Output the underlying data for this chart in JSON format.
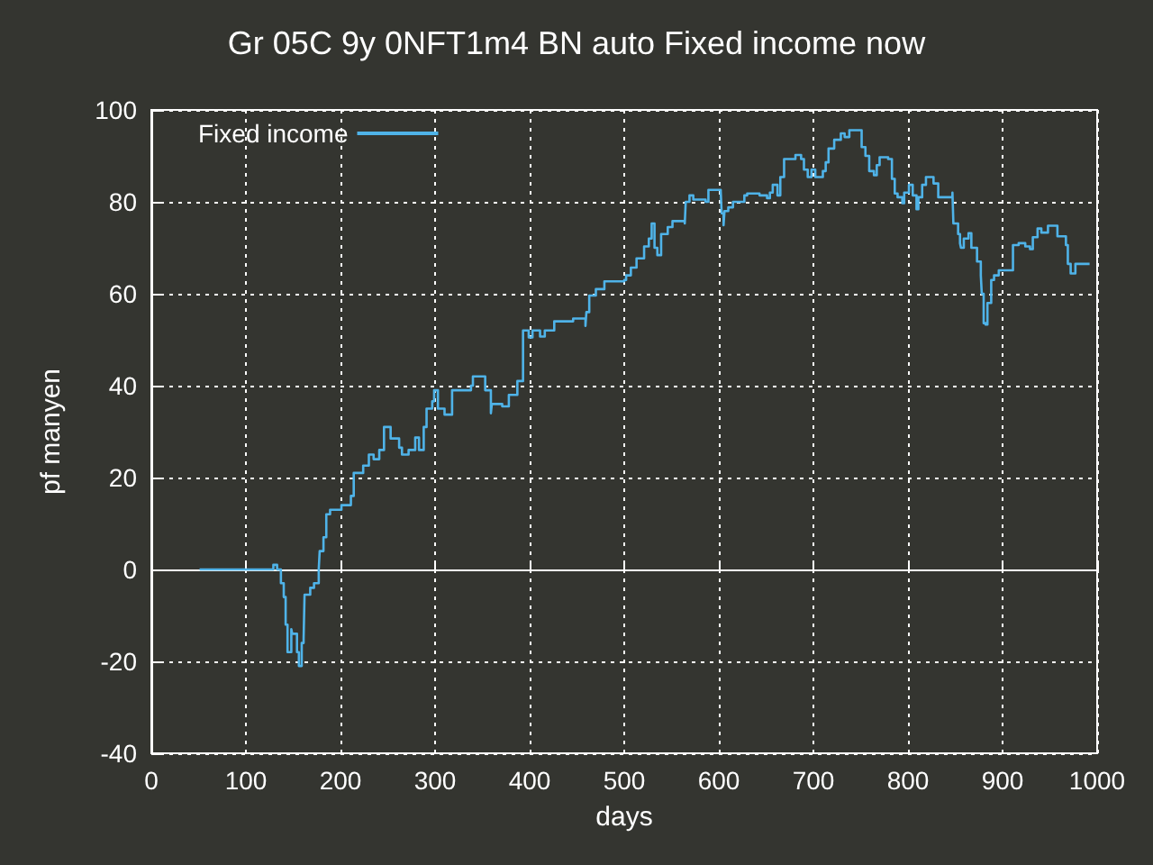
{
  "chart_data": {
    "type": "step",
    "title": "Gr 05C 9y 0NFT1m4 BN auto Fixed income now",
    "xlabel": "days",
    "ylabel": "pf manyen",
    "x": [
      51,
      129,
      133,
      137,
      140,
      142,
      144,
      148,
      149,
      154,
      156,
      159,
      161,
      162,
      168,
      172,
      177,
      178,
      182,
      185,
      189,
      201,
      211,
      214,
      224,
      230,
      235,
      241,
      246,
      253,
      262,
      265,
      272,
      279,
      283,
      288,
      291,
      297,
      299,
      303,
      310,
      318,
      338,
      340,
      353,
      359,
      360,
      371,
      378,
      387,
      393,
      399,
      403,
      411,
      416,
      426,
      446,
      459,
      460,
      463,
      470,
      479,
      500,
      502,
      507,
      513,
      521,
      526,
      529,
      532,
      535,
      539,
      546,
      551,
      564,
      565,
      569,
      573,
      586,
      589,
      602,
      603,
      605,
      606,
      610,
      615,
      627,
      630,
      643,
      651,
      654,
      657,
      662,
      665,
      669,
      681,
      687,
      690,
      694,
      698,
      702,
      710,
      713,
      716,
      722,
      729,
      733,
      738,
      749,
      751,
      755,
      759,
      764,
      767,
      770,
      779,
      783,
      786,
      789,
      794,
      796,
      801,
      805,
      809,
      811,
      815,
      819,
      827,
      832,
      847,
      848,
      853,
      855,
      856,
      859,
      864,
      867,
      873,
      877,
      878,
      880,
      882,
      884,
      888,
      891,
      896,
      909,
      911,
      917,
      924,
      929,
      932,
      937,
      941,
      948,
      956,
      958,
      967,
      969,
      972,
      977,
      992
    ],
    "series": [
      {
        "name": "Fixed income",
        "color": "#4fb3e8",
        "values": [
          0,
          1,
          0,
          -3,
          -6,
          -12,
          -18,
          -13,
          -14,
          -18,
          -21,
          -16,
          -15,
          -5.5,
          -4,
          -3,
          0,
          4,
          7,
          12,
          13,
          14,
          16,
          21,
          22.6,
          25,
          24,
          26,
          31,
          28.5,
          26.5,
          25,
          26,
          28.7,
          26,
          31,
          35,
          36.6,
          39,
          35,
          33.7,
          39,
          40,
          42,
          39,
          34,
          36,
          35.5,
          38,
          41,
          52,
          50.5,
          52,
          50.7,
          52,
          54,
          54.6,
          53,
          56,
          59.6,
          61,
          62.7,
          63,
          64,
          65.7,
          67.7,
          70.3,
          72,
          75.3,
          70,
          68.4,
          73,
          74.5,
          75.8,
          75.3,
          80,
          81.4,
          80.5,
          80,
          82.6,
          82.3,
          77.5,
          74.9,
          78,
          78.8,
          80,
          81.4,
          81.8,
          81.4,
          80.8,
          82,
          83.7,
          81.4,
          85.4,
          89.3,
          90.2,
          89.3,
          87,
          85.4,
          87,
          85.4,
          86.7,
          88.6,
          91.6,
          93.5,
          94.9,
          94.1,
          95.6,
          95.6,
          91.9,
          90,
          86.7,
          85.8,
          88,
          89.7,
          89.3,
          85,
          81.8,
          81,
          79.7,
          82,
          83.7,
          81.4,
          78.4,
          81,
          83.7,
          85.4,
          84,
          81,
          82,
          75.3,
          73,
          71,
          70,
          72,
          73.2,
          70,
          67,
          64,
          60,
          53.6,
          53.3,
          58,
          63,
          64,
          65.1,
          65.1,
          70.6,
          71,
          70.3,
          69.7,
          72.3,
          74.2,
          73.3,
          74.8,
          74.8,
          72.5,
          70.6,
          66.5,
          64.4,
          66.5,
          66.5
        ]
      }
    ],
    "xlim": [
      0,
      1000
    ],
    "ylim": [
      -40,
      100
    ],
    "xticks": [
      0,
      100,
      200,
      300,
      400,
      500,
      600,
      700,
      800,
      900,
      1000
    ],
    "yticks": [
      -40,
      -20,
      0,
      20,
      40,
      60,
      80,
      100
    ],
    "grid": true,
    "legend": "top left",
    "marker": "none"
  }
}
